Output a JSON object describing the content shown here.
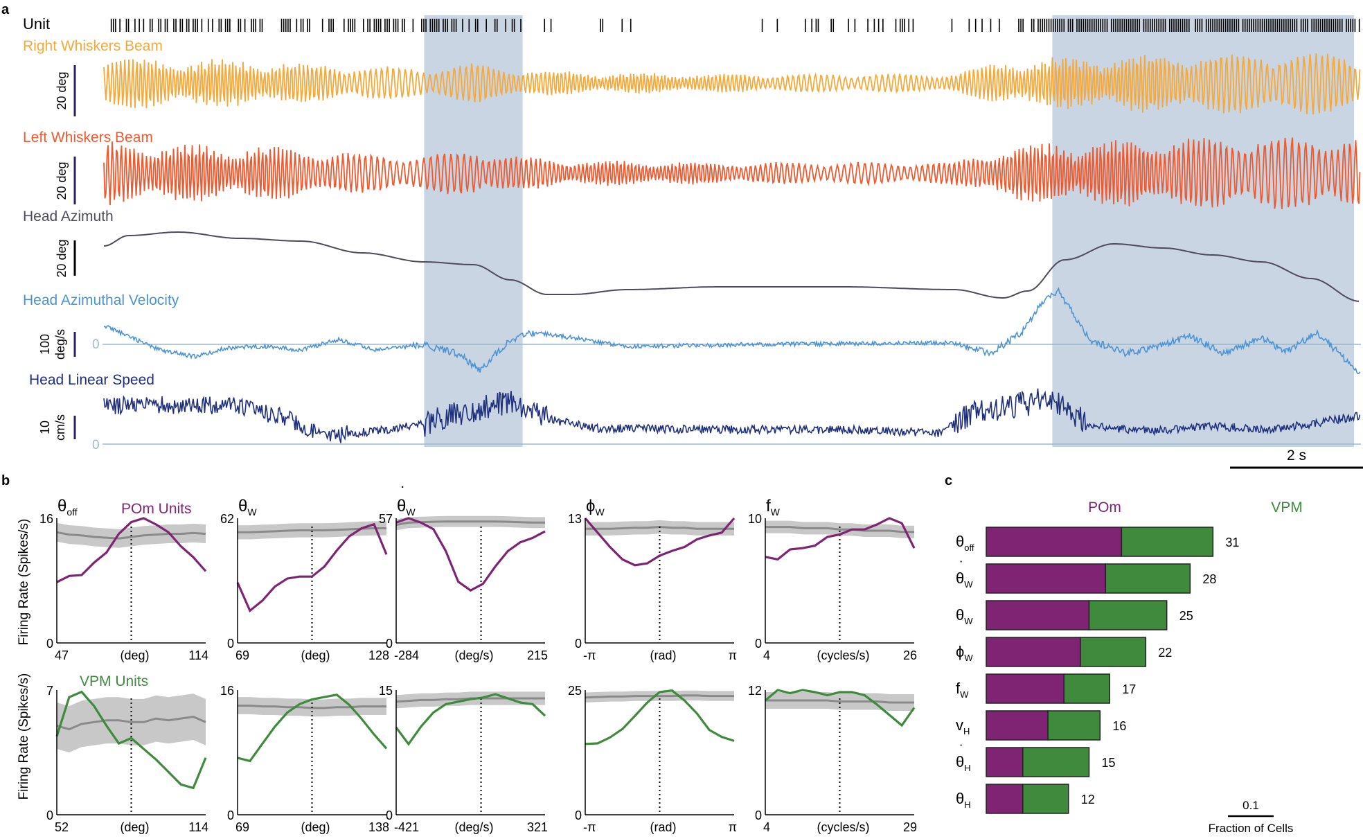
{
  "colors": {
    "right_whisker": "#F4A93C",
    "left_whisker": "#EE5A2F",
    "head_azimuth": "#4E4A5C",
    "head_az_velocity": "#4C93D3",
    "head_linear_speed": "#1E2F7E",
    "zero_line": "#9CBACB",
    "shade": "#C9D5E2",
    "pom": "#7E2473",
    "vpm": "#3F8A3D",
    "shuffle": "#8A8A8A",
    "shuffle_band": "#C8C8C8"
  },
  "chart_data": [
    {
      "panel": "a",
      "type": "line",
      "unit_label": "Unit",
      "traces": [
        {
          "id": "right",
          "label": "Right Whiskers Beam",
          "scale_label": "20 deg"
        },
        {
          "id": "left",
          "label": "Left Whiskers Beam",
          "scale_label": "20 deg"
        },
        {
          "id": "azimuth",
          "label": "Head Azimuth",
          "scale_label": "20 deg"
        },
        {
          "id": "velocity",
          "label": "Head Azimuthal Velocity",
          "scale_label_1": "100",
          "scale_label_2": "deg/s",
          "zero_label": "0"
        },
        {
          "id": "speed",
          "label": "Head Linear Speed",
          "scale_label_1": "10",
          "scale_label_2": "cm/s",
          "zero_label": "0"
        }
      ],
      "shaded_intervals_s": [
        [
          5.2,
          6.8
        ],
        [
          15.4,
          20.3
        ]
      ],
      "time_range_s": [
        0,
        20.4
      ],
      "time_scale_bar": "2 s"
    },
    {
      "panel": "b",
      "type": "line",
      "ylabel": "Firing Rate (Spikes/s)",
      "pom_label": "POm Units",
      "vpm_label": "VPM Units",
      "columns": [
        {
          "var": "θ",
          "sub": "off",
          "dot": false,
          "xmin": "47",
          "xunit": "(deg)",
          "xmax": "114",
          "dash_frac": 0.5
        },
        {
          "var": "θ",
          "sub": "W",
          "dot": false,
          "xmin": "69",
          "xunit": "(deg)",
          "xmax": "128",
          "dash_frac": 0.5
        },
        {
          "var": "θ",
          "sub": "W",
          "dot": true,
          "xmin": "-284",
          "xunit": "(deg/s)",
          "xmax": "215",
          "dash_frac": 0.57
        },
        {
          "var": "ϕ",
          "sub": "W",
          "dot": false,
          "xmin": "-π",
          "xunit": "(rad)",
          "xmax": "π",
          "dash_frac": 0.5
        },
        {
          "var": "f",
          "sub": "W",
          "dot": false,
          "xmin": "4",
          "xunit": "(cycles/s)",
          "xmax": "26",
          "dash_frac": 0.5
        }
      ],
      "bottom_xlabels": [
        {
          "xmin": "52",
          "xunit": "(deg)",
          "xmax": "114"
        },
        {
          "xmin": "69",
          "xunit": "(deg)",
          "xmax": "138"
        },
        {
          "xmin": "-421",
          "xunit": "(deg/s)",
          "xmax": "321"
        },
        {
          "xmin": "-π",
          "xunit": "(rad)",
          "xmax": "π"
        },
        {
          "xmin": "4",
          "xunit": "(cycles/s)",
          "xmax": "29"
        }
      ],
      "pom": [
        {
          "ymax": 16,
          "values": [
            7.8,
            8.6,
            8.7,
            10.3,
            11.6,
            14.0,
            15.5,
            16.0,
            15.2,
            14.2,
            12.4,
            11.0,
            9.2
          ]
        },
        {
          "ymax": 62,
          "values": [
            30,
            16,
            21,
            28,
            32,
            33,
            33,
            38,
            46,
            53,
            57,
            59,
            44
          ]
        },
        {
          "ymax": 57,
          "values": [
            55,
            57,
            55,
            52,
            42,
            28,
            24,
            27,
            35,
            42,
            46,
            48,
            51
          ]
        },
        {
          "ymax": 13,
          "values": [
            13.0,
            11.5,
            10.0,
            8.7,
            8.1,
            8.3,
            9.1,
            9.6,
            10.0,
            10.8,
            11.2,
            11.5,
            13.0
          ]
        },
        {
          "ymax": 10,
          "values": [
            6.9,
            6.7,
            7.5,
            7.6,
            7.8,
            8.5,
            8.7,
            9.1,
            9.1,
            9.5,
            10.0,
            9.6,
            7.6
          ]
        }
      ],
      "pom_shuffle": [
        {
          "mean": [
            14.2,
            13.9,
            13.8,
            13.6,
            13.5,
            13.4,
            13.6,
            13.8,
            13.9,
            14.0,
            14.0,
            14.1,
            14.0
          ],
          "band": 1.2
        },
        {
          "mean": [
            55,
            55,
            55.3,
            55.5,
            55.8,
            56,
            56,
            56,
            56.2,
            56.5,
            56.8,
            57,
            57
          ],
          "band": 3.5
        },
        {
          "mean": [
            54,
            55,
            55.2,
            55.4,
            55.5,
            55.5,
            55.5,
            55.5,
            55.5,
            55.4,
            55.2,
            55,
            55
          ],
          "band": 2.5
        },
        {
          "mean": [
            11.9,
            11.9,
            11.9,
            11.95,
            12.0,
            12.0,
            12.1,
            12.0,
            12.0,
            11.9,
            11.9,
            11.9,
            11.9
          ],
          "band": 0.7
        },
        {
          "mean": [
            9.3,
            9.3,
            9.3,
            9.2,
            9.2,
            9.2,
            9.1,
            9.1,
            9.0,
            9.0,
            9.0,
            8.9,
            8.9
          ],
          "band": 0.5
        }
      ],
      "vpm": [
        {
          "ymax": 7,
          "values": [
            4.4,
            6.6,
            6.9,
            6.1,
            5.0,
            4.0,
            4.3,
            3.7,
            3.1,
            2.4,
            1.7,
            1.5,
            3.2
          ]
        },
        {
          "ymax": 16,
          "values": [
            7.3,
            6.9,
            9.1,
            11.3,
            13.1,
            14.2,
            14.8,
            15.1,
            15.4,
            14.1,
            12.3,
            10.3,
            8.5
          ]
        },
        {
          "ymax": 15,
          "values": [
            10.5,
            8.5,
            10.6,
            12.3,
            13.3,
            13.6,
            13.9,
            14.1,
            14.5,
            14.0,
            13.5,
            13.3,
            11.9
          ]
        },
        {
          "ymax": 25,
          "values": [
            14.2,
            14.3,
            15.5,
            17.2,
            19.8,
            22.5,
            24.6,
            24.9,
            22.9,
            20.3,
            17.0,
            15.6,
            14.8
          ]
        },
        {
          "ymax": 12,
          "values": [
            11.0,
            12.0,
            11.7,
            12.0,
            11.8,
            11.5,
            11.8,
            11.8,
            11.5,
            10.6,
            9.6,
            8.6,
            10.3
          ]
        }
      ],
      "vpm_shuffle": [
        {
          "mean": [
            5.0,
            4.8,
            5.1,
            5.2,
            5.3,
            5.3,
            5.2,
            5.2,
            5.4,
            5.3,
            5.4,
            5.5,
            5.2
          ],
          "band": 1.3
        },
        {
          "mean": [
            14.0,
            14.0,
            13.9,
            13.9,
            13.8,
            13.8,
            13.7,
            13.7,
            13.8,
            13.8,
            13.9,
            13.9,
            13.9
          ],
          "band": 1.1
        },
        {
          "mean": [
            13.6,
            13.7,
            13.8,
            13.8,
            13.9,
            13.9,
            14.0,
            14.0,
            14.0,
            14.0,
            14.0,
            14.0,
            14.0
          ],
          "band": 0.8
        },
        {
          "mean": [
            23.5,
            23.6,
            23.7,
            23.7,
            23.8,
            23.8,
            23.8,
            23.8,
            23.9,
            23.9,
            23.8,
            23.8,
            23.8
          ],
          "band": 1.0
        },
        {
          "mean": [
            11.0,
            11.0,
            11.0,
            11.0,
            11.0,
            11.0,
            10.9,
            10.9,
            10.9,
            10.9,
            10.8,
            10.8,
            10.8
          ],
          "band": 0.8
        }
      ]
    },
    {
      "panel": "c",
      "type": "bar",
      "stacked": true,
      "orientation": "horizontal",
      "pom_label": "POm",
      "vpm_label": "VPM",
      "scale_value": "0.1",
      "xlabel": "Fraction of Cells",
      "categories": [
        {
          "var": "θ",
          "sub": "off",
          "dot": false
        },
        {
          "var": "θ",
          "sub": "W",
          "dot": true
        },
        {
          "var": "θ",
          "sub": "W",
          "dot": false
        },
        {
          "var": "ϕ",
          "sub": "W",
          "dot": false
        },
        {
          "var": "f",
          "sub": "W",
          "dot": false
        },
        {
          "var": "v",
          "sub": "H",
          "dot": false
        },
        {
          "var": "θ",
          "sub": "H",
          "dot": true
        },
        {
          "var": "θ",
          "sub": "H",
          "dot": false
        }
      ],
      "series": [
        {
          "name": "POm",
          "values": [
            0.296,
            0.261,
            0.225,
            0.206,
            0.17,
            0.135,
            0.08,
            0.08
          ]
        },
        {
          "name": "VPM",
          "values": [
            0.2,
            0.185,
            0.17,
            0.143,
            0.1,
            0.114,
            0.145,
            0.1
          ]
        }
      ],
      "counts": [
        "31",
        "28",
        "25",
        "22",
        "17",
        "16",
        "15",
        "12"
      ]
    }
  ]
}
